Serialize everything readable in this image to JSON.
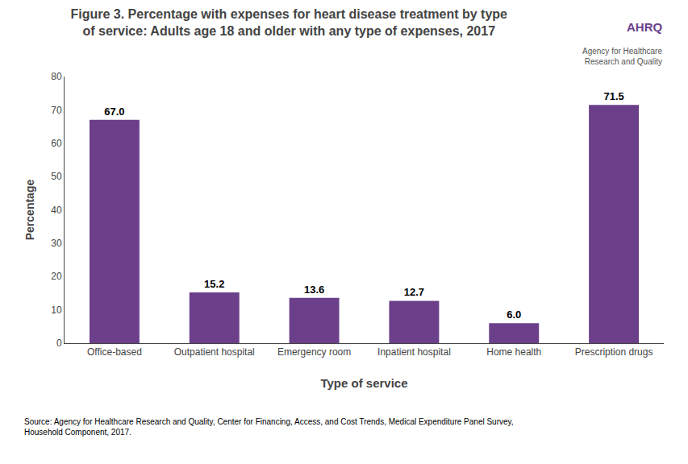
{
  "chart_data": {
    "type": "bar",
    "title": "Figure 3. Percentage with expenses for heart disease treatment by type\nof service: Adults age 18 and older with any type of expenses, 2017",
    "xlabel": "Type of service",
    "ylabel": "Percentage",
    "categories": [
      "Office-based",
      "Outpatient hospital",
      "Emergency room",
      "Inpatient hospital",
      "Home health",
      "Prescription drugs"
    ],
    "values": [
      67.0,
      15.2,
      13.6,
      12.7,
      6.0,
      71.5
    ],
    "value_labels": [
      "67.0",
      "15.2",
      "13.6",
      "12.7",
      "6.0",
      "71.5"
    ],
    "data_labels": true,
    "color": "#6B3F8A",
    "ylim": [
      0,
      80
    ],
    "yticks": [
      0,
      10,
      20,
      30,
      40,
      50,
      60,
      70,
      80
    ],
    "grid": false,
    "annotations": [
      "AHRQ",
      "Agency for Healthcare\nResearch and Quality",
      "Source: Agency for Healthcare Research and Quality, Center for Financing, Access, and Cost Trends, Medical Expenditure Panel Survey,\nHousehold Component, 2017."
    ]
  }
}
